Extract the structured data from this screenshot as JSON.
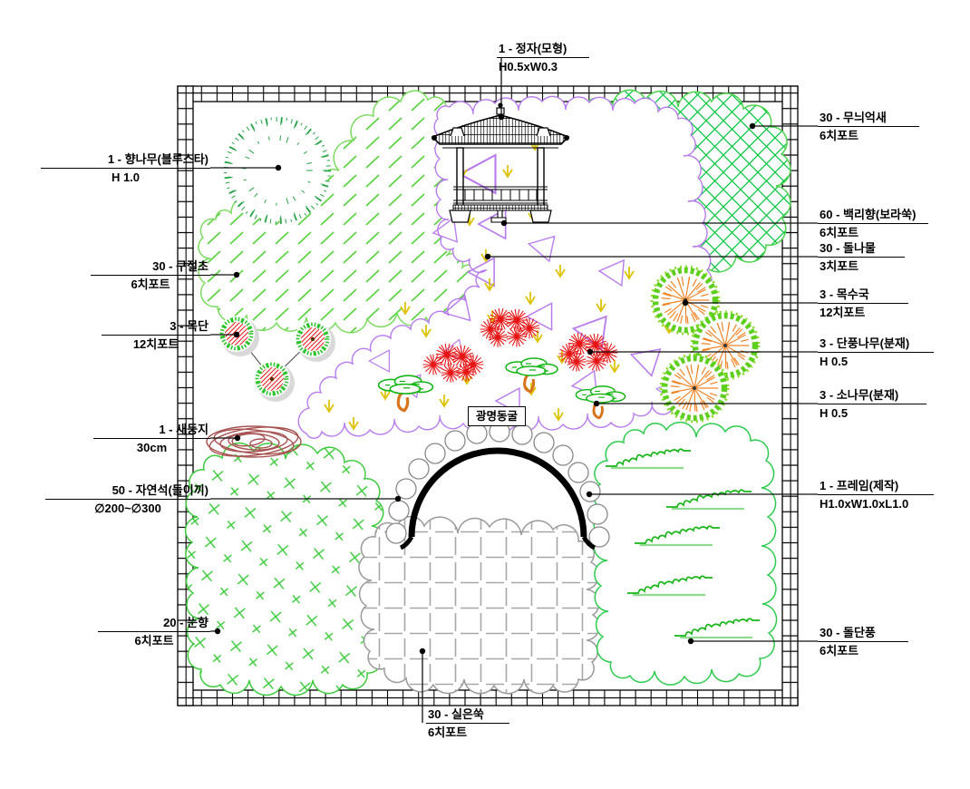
{
  "drawing": {
    "tunnel_label": "광명동굴",
    "legend_top": {
      "name": "1 - 정자(모형)",
      "spec": "H0.5xW0.3"
    },
    "legend_bottom": {
      "name": "30 - 실은쑥",
      "spec": "6치포트"
    },
    "legend_left": [
      {
        "name": "1 - 향나무(블루스타)",
        "spec": "H 1.0"
      },
      {
        "name": "30 - 구절초",
        "spec": "6치포트"
      },
      {
        "name": "3 - 목단",
        "spec": "12치포트"
      },
      {
        "name": "1 - 새둥지",
        "spec": "30cm"
      },
      {
        "name": "50 - 자연석(돌이끼)",
        "spec": "∅200~∅300"
      },
      {
        "name": "20 - 눈향",
        "spec": "6치포트"
      }
    ],
    "legend_right": [
      {
        "name": "30 - 무늬억새",
        "spec": "6치포트"
      },
      {
        "name": "60 - 백리향(보라쑥)",
        "spec": "6치포트"
      },
      {
        "name": "30 - 돌나물",
        "spec": "3치포트"
      },
      {
        "name": "3 - 목수국",
        "spec": "12치포트"
      },
      {
        "name": "3 - 단풍나무(분재)",
        "spec": "H 0.5"
      },
      {
        "name": "3 - 소나무(분재)",
        "spec": "H 0.5"
      },
      {
        "name": "1 - 프레임(제작)",
        "spec": "H1.0xW1.0xL1.0"
      },
      {
        "name": "30 - 돌단풍",
        "spec": "6치포트"
      }
    ],
    "colors": {
      "leaf_green": "#57d13e",
      "bright_green": "#00c43c",
      "violet": "#b87bee",
      "yellow": "#dcc100",
      "red": "#e81414",
      "orange": "#f08428",
      "brown": "#a85252",
      "gray": "#a8a8a8",
      "black": "#000000"
    }
  }
}
